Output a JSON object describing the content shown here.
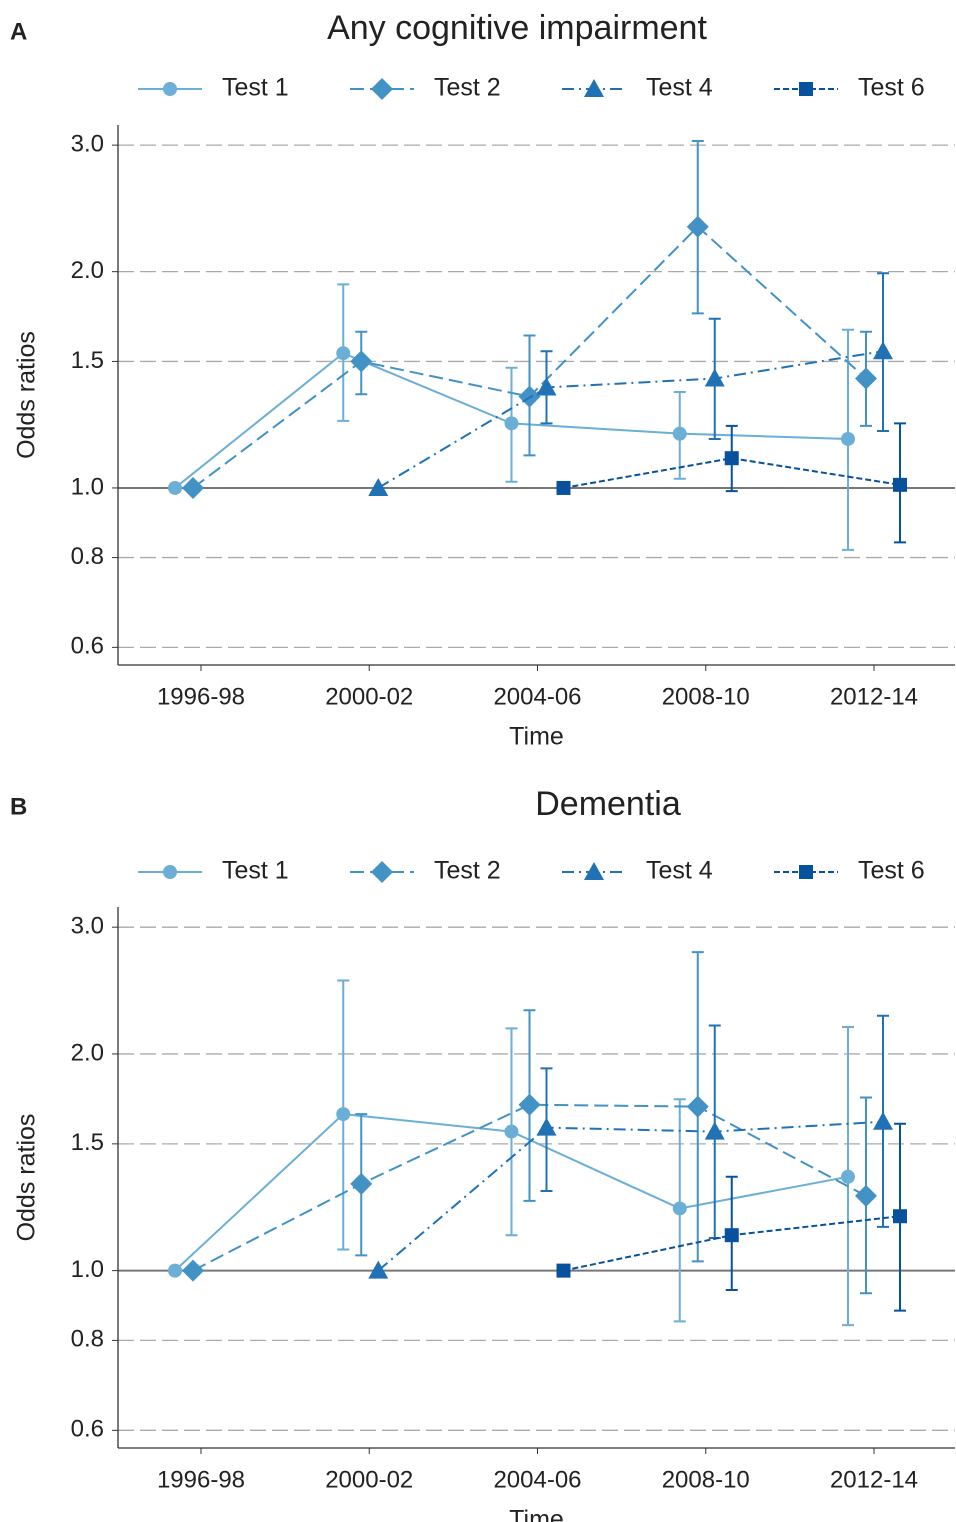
{
  "chart_data": [
    {
      "type": "line",
      "panel_label": "A",
      "title": "Any cognitive impairment",
      "xlabel": "Time",
      "ylabel": "Odds ratios",
      "categories": [
        "1996-98",
        "2000-02",
        "2004-06",
        "2008-10",
        "2012-14"
      ],
      "log_scale": true,
      "grid": true,
      "reference_line": 1,
      "ylim": [
        0.567,
        3.2
      ],
      "yticks": [
        0.6,
        0.8,
        {
          "value": 1,
          "label": "1.0"
        },
        1.5,
        {
          "value": 2,
          "label": "2.0"
        },
        {
          "value": 3,
          "label": "3.0"
        }
      ],
      "series": [
        {
          "name": "Test 1",
          "color": "#6baed6",
          "marker": "circle",
          "linestyle": "solid",
          "values": [
            1,
            1.54,
            1.23,
            1.19,
            1.17
          ],
          "ci_low": [
            null,
            1.24,
            1.02,
            1.03,
            0.82
          ],
          "ci_high": [
            null,
            1.92,
            1.47,
            1.36,
            1.66
          ]
        },
        {
          "name": "Test 2",
          "color": "#4292c6",
          "marker": "diamond",
          "linestyle": "long-dash",
          "values": [
            1,
            1.5,
            1.34,
            2.31,
            1.42
          ],
          "ci_low": [
            null,
            1.35,
            1.11,
            1.75,
            1.22
          ],
          "ci_high": [
            null,
            1.65,
            1.63,
            3.04,
            1.65
          ]
        },
        {
          "name": "Test 4",
          "color": "#2171b5",
          "marker": "triangle",
          "linestyle": "dash-dot",
          "values": [
            null,
            1,
            1.38,
            1.42,
            1.55
          ],
          "ci_low": [
            null,
            null,
            1.23,
            1.17,
            1.2
          ],
          "ci_high": [
            null,
            null,
            1.55,
            1.72,
            1.99
          ]
        },
        {
          "name": "Test 6",
          "color": "#08519c",
          "marker": "square",
          "linestyle": "short-dash",
          "values": [
            null,
            null,
            1,
            1.1,
            1.01
          ],
          "ci_low": [
            null,
            null,
            null,
            0.99,
            0.84
          ],
          "ci_high": [
            null,
            null,
            null,
            1.22,
            1.23
          ]
        }
      ]
    },
    {
      "type": "line",
      "panel_label": "B",
      "title": "Dementia",
      "xlabel": "Time",
      "ylabel": "Odds ratios",
      "categories": [
        "1996-98",
        "2000-02",
        "2004-06",
        "2008-10",
        "2012-14"
      ],
      "log_scale": true,
      "grid": true,
      "reference_line": 1,
      "ylim": [
        0.567,
        3.2
      ],
      "yticks": [
        0.6,
        0.8,
        {
          "value": 1,
          "label": "1.0"
        },
        1.5,
        {
          "value": 2,
          "label": "2.0"
        },
        {
          "value": 3,
          "label": "3.0"
        }
      ],
      "series": [
        {
          "name": "Test 1",
          "color": "#6baed6",
          "marker": "circle",
          "linestyle": "solid",
          "values": [
            1,
            1.65,
            1.56,
            1.22,
            1.35
          ],
          "ci_low": [
            null,
            1.07,
            1.12,
            0.85,
            0.84
          ],
          "ci_high": [
            null,
            2.53,
            2.17,
            1.73,
            2.18
          ]
        },
        {
          "name": "Test 2",
          "color": "#4292c6",
          "marker": "diamond",
          "linestyle": "long-dash",
          "values": [
            1,
            1.32,
            1.7,
            1.69,
            1.27
          ],
          "ci_low": [
            null,
            1.05,
            1.25,
            1.03,
            0.93
          ],
          "ci_high": [
            null,
            1.65,
            2.3,
            2.77,
            1.74
          ]
        },
        {
          "name": "Test 4",
          "color": "#2171b5",
          "marker": "triangle",
          "linestyle": "dash-dot",
          "values": [
            null,
            1,
            1.58,
            1.56,
            1.61
          ],
          "ci_low": [
            null,
            null,
            1.29,
            1.11,
            1.15
          ],
          "ci_high": [
            null,
            null,
            1.91,
            2.19,
            2.26
          ]
        },
        {
          "name": "Test 6",
          "color": "#08519c",
          "marker": "square",
          "linestyle": "short-dash",
          "values": [
            null,
            null,
            1,
            1.12,
            1.19
          ],
          "ci_low": [
            null,
            null,
            null,
            0.94,
            0.88
          ],
          "ci_high": [
            null,
            null,
            null,
            1.35,
            1.6
          ]
        }
      ]
    }
  ]
}
